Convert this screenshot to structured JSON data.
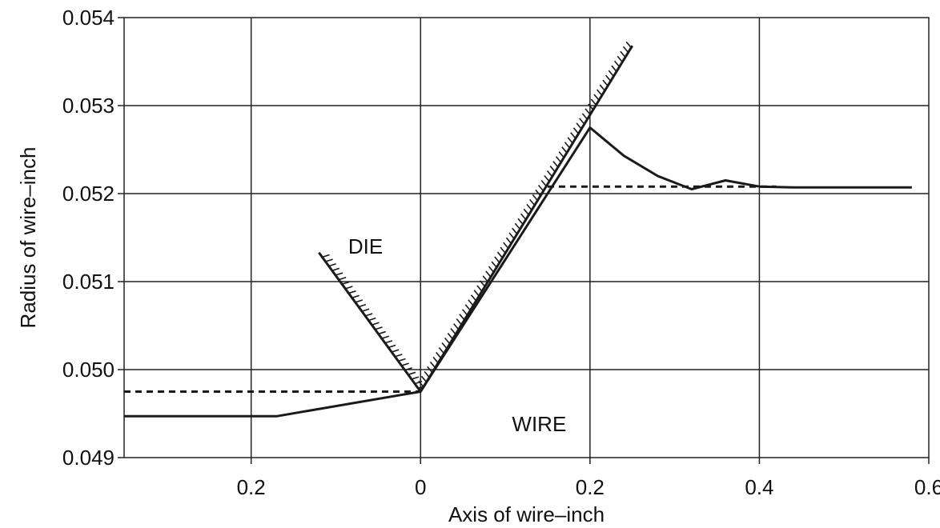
{
  "chart_data": {
    "type": "line",
    "title": "",
    "xlabel": "Axis of wire–inch",
    "ylabel": "Radius of wire–inch",
    "xlim": [
      -0.35,
      0.6
    ],
    "ylim": [
      0.049,
      0.054
    ],
    "grid": true,
    "x_ticks": [
      {
        "value": -0.2,
        "label": "0.2"
      },
      {
        "value": 0,
        "label": "0"
      },
      {
        "value": 0.2,
        "label": "0.2"
      },
      {
        "value": 0.4,
        "label": "0.4"
      },
      {
        "value": 0.6,
        "label": "0.6"
      }
    ],
    "y_ticks": [
      {
        "value": 0.049,
        "label": "0.049"
      },
      {
        "value": 0.05,
        "label": "0.050"
      },
      {
        "value": 0.051,
        "label": "0.051"
      },
      {
        "value": 0.052,
        "label": "0.052"
      },
      {
        "value": 0.053,
        "label": "0.053"
      },
      {
        "value": 0.054,
        "label": "0.054"
      }
    ],
    "series": [
      {
        "style": "solid",
        "x": [
          -0.35,
          -0.17,
          0.0,
          0.2,
          0.24,
          0.28,
          0.32,
          0.36,
          0.4,
          0.44,
          0.5,
          0.58
        ],
        "y": [
          0.04947,
          0.04947,
          0.04975,
          0.05275,
          0.05243,
          0.0522,
          0.05205,
          0.05215,
          0.05208,
          0.05207,
          0.05207,
          0.05207
        ]
      },
      {
        "style": "dashed",
        "x": [
          -0.35,
          0.0
        ],
        "y": [
          0.04975,
          0.04975
        ]
      },
      {
        "style": "dashed",
        "x": [
          0.15,
          0.42
        ],
        "y": [
          0.05208,
          0.05208
        ]
      },
      {
        "style": "hatched",
        "x": [
          -0.12,
          0.0
        ],
        "y": [
          0.05133,
          0.04975
        ]
      },
      {
        "style": "hatched",
        "x": [
          0.0,
          0.25
        ],
        "y": [
          0.04975,
          0.05368
        ]
      }
    ],
    "annotations": [
      {
        "text": "DIE",
        "x": -0.065,
        "y": 0.05132
      },
      {
        "text": "WIRE",
        "x": 0.14,
        "y": 0.0493
      }
    ]
  }
}
